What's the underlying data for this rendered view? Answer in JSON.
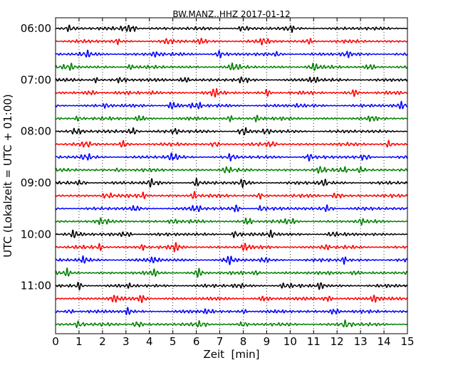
{
  "chart_data": {
    "type": "line",
    "title": "BW.MANZ..HHZ 2017-01-12",
    "xlabel": "Zeit  [min]",
    "ylabel": "UTC (Lokalzeit = UTC + 01:00)",
    "xlim": [
      0,
      15
    ],
    "x_ticks": [
      0,
      1,
      2,
      3,
      4,
      5,
      6,
      7,
      8,
      9,
      10,
      11,
      12,
      13,
      14,
      15
    ],
    "y_tick_labels": [
      "06:00",
      "07:00",
      "08:00",
      "09:00",
      "10:00",
      "11:00"
    ],
    "grid": "vertical dotted at each minute",
    "trace_start_times": [
      "06:00",
      "06:15",
      "06:30",
      "06:45",
      "07:00",
      "07:15",
      "07:30",
      "07:45",
      "08:00",
      "08:15",
      "08:30",
      "08:45",
      "09:00",
      "09:15",
      "09:30",
      "09:45",
      "10:00",
      "10:15",
      "10:30",
      "10:45",
      "11:00",
      "11:15",
      "11:30",
      "11:45"
    ],
    "trace_colors": [
      "#000000",
      "#ff0000",
      "#0000ff",
      "#008000"
    ],
    "series": [
      {
        "values": [
          0.6,
          3.0,
          3.3,
          8.0,
          10.0
        ]
      },
      {
        "values": [
          2.6,
          4.8,
          6.2,
          8.9,
          10.8
        ]
      },
      {
        "values": [
          1.3,
          4.3,
          7.0,
          9.5,
          12.4
        ]
      },
      {
        "values": [
          0.6,
          3.2,
          7.6,
          11.0,
          13.4
        ]
      },
      {
        "values": [
          1.7,
          2.8,
          5.5,
          8.0,
          11.0
        ]
      },
      {
        "values": [
          1.5,
          4.2,
          6.8,
          9.0,
          12.7
        ]
      },
      {
        "values": [
          2.2,
          5.0,
          6.0,
          10.4,
          14.8
        ]
      },
      {
        "values": [
          1.0,
          3.6,
          7.4,
          8.6,
          13.5
        ]
      },
      {
        "values": [
          0.9,
          3.3,
          5.1,
          8.0,
          9.0
        ]
      },
      {
        "values": [
          1.3,
          2.9,
          6.8,
          9.2,
          14.2
        ]
      },
      {
        "values": [
          1.3,
          5.0,
          7.5,
          10.8,
          13.2
        ]
      },
      {
        "values": [
          2.7,
          7.3,
          11.3,
          12.3,
          13.0
        ]
      },
      {
        "values": [
          1.1,
          4.1,
          6.0,
          8.0,
          11.4
        ]
      },
      {
        "values": [
          2.2,
          3.7,
          5.9,
          8.7,
          12.0
        ]
      },
      {
        "values": [
          3.4,
          6.0,
          7.7,
          8.8,
          11.6
        ]
      },
      {
        "values": [
          2.0,
          5.0,
          8.2,
          10.0,
          13.0
        ]
      },
      {
        "values": [
          0.8,
          3.0,
          7.7,
          9.2,
          11.8
        ]
      },
      {
        "values": [
          1.9,
          3.7,
          5.1,
          8.1,
          11.5
        ]
      },
      {
        "values": [
          1.2,
          4.2,
          7.4,
          8.9,
          12.3
        ]
      },
      {
        "values": [
          0.5,
          4.2,
          6.1,
          8.6,
          12.8
        ]
      },
      {
        "values": [
          1.0,
          3.2,
          7.8,
          9.8,
          11.3
        ]
      },
      {
        "values": [
          2.5,
          3.7,
          8.9,
          11.6,
          13.6
        ]
      },
      {
        "values": [
          0.6,
          3.1,
          6.5,
          8.0,
          11.9
        ]
      },
      {
        "values": [
          1.0,
          3.5,
          6.2,
          8.0,
          12.4
        ]
      }
    ]
  }
}
